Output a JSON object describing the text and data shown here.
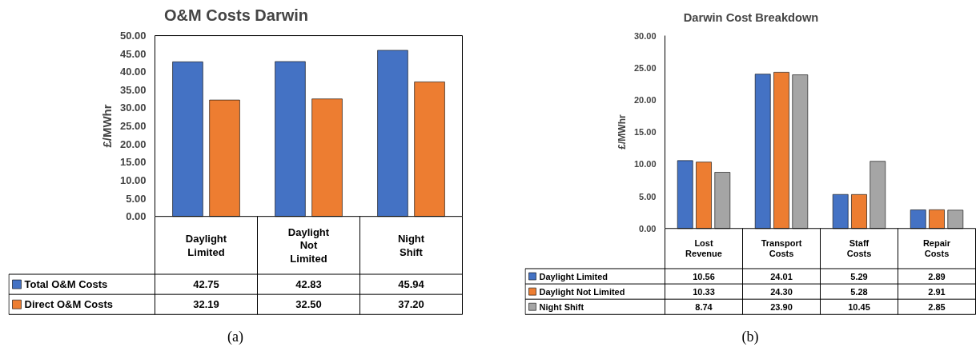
{
  "chart_data": [
    {
      "type": "bar",
      "title": "O&M Costs Darwin",
      "ylabel": "£/MWhr",
      "categories": [
        "Daylight Limited",
        "Daylight Not Limited",
        "Night Shift"
      ],
      "series": [
        {
          "name": "Total O&M Costs",
          "color": "#4472c4",
          "values": [
            42.75,
            42.83,
            45.94
          ],
          "value_labels": [
            "42.75",
            "42.83",
            "45.94"
          ]
        },
        {
          "name": "Direct O&M Costs",
          "color": "#ed7d31",
          "values": [
            32.19,
            32.5,
            37.2
          ],
          "value_labels": [
            "32.19",
            "32.50",
            "37.20"
          ]
        }
      ],
      "ylim": [
        0,
        50
      ],
      "yticks": [
        {
          "value": 0,
          "label": "0.00"
        },
        {
          "value": 5,
          "label": "5.00"
        },
        {
          "value": 10,
          "label": "10.00"
        },
        {
          "value": 15,
          "label": "15.00"
        },
        {
          "value": 20,
          "label": "20.00"
        },
        {
          "value": 25,
          "label": "25.00"
        },
        {
          "value": 30,
          "label": "30.00"
        },
        {
          "value": 35,
          "label": "35.00"
        },
        {
          "value": 40,
          "label": "40.00"
        },
        {
          "value": 45,
          "label": "45.00"
        },
        {
          "value": 50,
          "label": "50.00"
        }
      ],
      "legend": "bottom left",
      "annotations": [
        "(a)"
      ]
    },
    {
      "type": "bar",
      "title": "Darwin Cost Breakdown",
      "ylabel": "£/MWhr",
      "categories": [
        "Lost Revenue",
        "Transport Costs",
        "Staff Costs",
        "Repair Costs"
      ],
      "series": [
        {
          "name": "Daylight Limited",
          "color": "#4472c4",
          "values": [
            10.56,
            24.01,
            5.29,
            2.89
          ],
          "value_labels": [
            "10.56",
            "24.01",
            "5.29",
            "2.89"
          ]
        },
        {
          "name": "Daylight Not Limited",
          "color": "#ed7d31",
          "values": [
            10.33,
            24.3,
            5.28,
            2.91
          ],
          "value_labels": [
            "10.33",
            "24.30",
            "5.28",
            "2.91"
          ]
        },
        {
          "name": "Night Shift",
          "color": "#a5a5a5",
          "values": [
            8.74,
            23.9,
            10.45,
            2.85
          ],
          "value_labels": [
            "8.74",
            "23.90",
            "10.45",
            "2.85"
          ]
        }
      ],
      "ylim": [
        0,
        30
      ],
      "yticks": [
        {
          "value": 0,
          "label": "0.00"
        },
        {
          "value": 5,
          "label": "5.00"
        },
        {
          "value": 10,
          "label": "10.00"
        },
        {
          "value": 15,
          "label": "15.00"
        },
        {
          "value": 20,
          "label": "20.00"
        },
        {
          "value": 25,
          "label": "25.00"
        },
        {
          "value": 30,
          "label": "30.00"
        }
      ],
      "legend": "bottom left",
      "annotations": [
        "(b)"
      ]
    }
  ]
}
